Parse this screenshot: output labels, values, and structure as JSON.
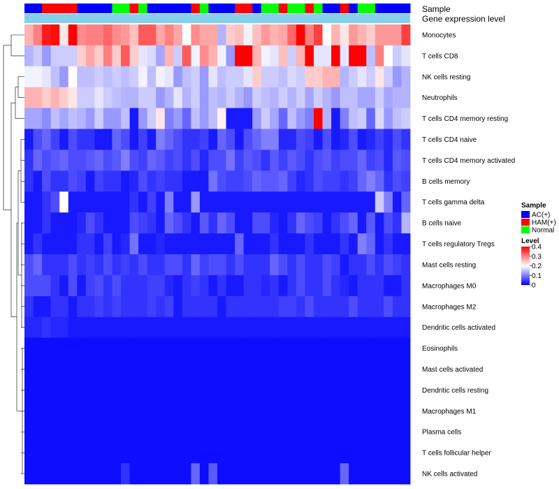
{
  "chart_data": {
    "type": "heatmap",
    "annotation_labels": {
      "sample": "Sample",
      "expression": "Gene expression level"
    },
    "legend": {
      "sample_title": "Sample",
      "sample_entries": [
        {
          "label": "AC(+)",
          "color": "#0000ff"
        },
        {
          "label": "HAM(+)",
          "color": "#ff0000"
        },
        {
          "label": "Normal",
          "color": "#00ff00"
        }
      ],
      "level_title": "Level",
      "level_ticks": [
        "0.4",
        "0.3",
        "0.2",
        "0.1",
        "0"
      ],
      "level_range": [
        0,
        0.4
      ],
      "colors": {
        "low": "#0000ff",
        "mid": "#ffffff",
        "high": "#ff0000"
      }
    },
    "expression_bar_color": "#87ceeb",
    "sample_groups": [
      "A",
      "A",
      "H",
      "H",
      "H",
      "H",
      "A",
      "A",
      "A",
      "A",
      "N",
      "N",
      "H",
      "N",
      "A",
      "A",
      "A",
      "A",
      "A",
      "H",
      "N",
      "A",
      "A",
      "A",
      "H",
      "H",
      "A",
      "N",
      "N",
      "H",
      "N",
      "N",
      "H",
      "N",
      "A",
      "A",
      "H",
      "A",
      "N",
      "N",
      "A",
      "A",
      "A",
      "A"
    ],
    "rows": [
      "Monocytes",
      "T cells CD8",
      "NK cells resting",
      "Neutrophils",
      "T cells CD4 memory resting",
      "T cells CD4 naive",
      "T cells CD4 memory activated",
      "B cells memory",
      "T cells gamma delta",
      "B cells naive",
      "T cells regulatory  Tregs",
      "Mast cells resting",
      "Macrophages M0",
      "Macrophages M2",
      "Dendritic cells activated",
      "Eosinophils",
      "Mast cells activated",
      "Dendritic cells resting",
      "Macrophages M1",
      "Plasma cells",
      "T cells follicular helper",
      "NK cells activated"
    ],
    "values": [
      [
        0.26,
        0.3,
        0.38,
        0.39,
        0.22,
        0.41,
        0.29,
        0.3,
        0.3,
        0.32,
        0.29,
        0.28,
        0.25,
        0.33,
        0.33,
        0.27,
        0.3,
        0.27,
        0.2,
        0.29,
        0.27,
        0.27,
        0.14,
        0.24,
        0.25,
        0.19,
        0.25,
        0.28,
        0.26,
        0.27,
        0.32,
        0.4,
        0.3,
        0.35,
        0.2,
        0.26,
        0.22,
        0.28,
        0.26,
        0.24,
        0.28,
        0.28,
        0.28,
        0.35
      ],
      [
        0.14,
        0.16,
        0.12,
        0.16,
        0.16,
        0.16,
        0.24,
        0.27,
        0.24,
        0.3,
        0.24,
        0.33,
        0.24,
        0.18,
        0.17,
        0.13,
        0.26,
        0.16,
        0.33,
        0.19,
        0.29,
        0.26,
        0.19,
        0.12,
        0.42,
        0.42,
        0.26,
        0.19,
        0.18,
        0.25,
        0.16,
        0.26,
        0.4,
        0.18,
        0.18,
        0.4,
        0.18,
        0.4,
        0.41,
        0.15,
        0.3,
        0.2,
        0.16,
        0.18
      ],
      [
        0.19,
        0.19,
        0.18,
        0.15,
        0.12,
        0.2,
        0.15,
        0.15,
        0.16,
        0.15,
        0.16,
        0.15,
        0.16,
        0.19,
        0.15,
        0.19,
        0.18,
        0.12,
        0.15,
        0.16,
        0.12,
        0.18,
        0.15,
        0.16,
        0.16,
        0.18,
        0.24,
        0.16,
        0.16,
        0.15,
        0.17,
        0.16,
        0.24,
        0.24,
        0.26,
        0.26,
        0.14,
        0.16,
        0.18,
        0.16,
        0.22,
        0.16,
        0.12,
        0.14
      ],
      [
        0.26,
        0.26,
        0.24,
        0.26,
        0.24,
        0.22,
        0.16,
        0.16,
        0.18,
        0.16,
        0.15,
        0.14,
        0.14,
        0.16,
        0.16,
        0.12,
        0.14,
        0.18,
        0.14,
        0.16,
        0.12,
        0.15,
        0.14,
        0.16,
        0.14,
        0.12,
        0.16,
        0.15,
        0.14,
        0.16,
        0.14,
        0.16,
        0.13,
        0.16,
        0.14,
        0.12,
        0.15,
        0.15,
        0.13,
        0.13,
        0.16,
        0.13,
        0.14,
        0.14
      ],
      [
        0.13,
        0.13,
        0.11,
        0.15,
        0.13,
        0.15,
        0.14,
        0.12,
        0.16,
        0.12,
        0.12,
        0.15,
        0.02,
        0.12,
        0.16,
        0.22,
        0.1,
        0.12,
        0.08,
        0.15,
        0.12,
        0.15,
        0.21,
        0.02,
        0.02,
        0.02,
        0.12,
        0.16,
        0.13,
        0.08,
        0.15,
        0.12,
        0.1,
        0.4,
        0.14,
        0.02,
        0.1,
        0.15,
        0.16,
        0.08,
        0.17,
        0.12,
        0.15,
        0.16
      ],
      [
        0.02,
        0.06,
        0.08,
        0.05,
        0.02,
        0.06,
        0.04,
        0.04,
        0.02,
        0.02,
        0.08,
        0.06,
        0.02,
        0.05,
        0.02,
        0.1,
        0.08,
        0.06,
        0.04,
        0.04,
        0.05,
        0.02,
        0.08,
        0.06,
        0.02,
        0.06,
        0.08,
        0.1,
        0.1,
        0.03,
        0.03,
        0.06,
        0.05,
        0.02,
        0.06,
        0.02,
        0.03,
        0.06,
        0.02,
        0.03,
        0.05,
        0.03,
        0.06,
        0.04
      ],
      [
        0.04,
        0.08,
        0.06,
        0.07,
        0.08,
        0.06,
        0.06,
        0.07,
        0.08,
        0.06,
        0.07,
        0.1,
        0.06,
        0.05,
        0.08,
        0.07,
        0.05,
        0.06,
        0.04,
        0.06,
        0.03,
        0.06,
        0.06,
        0.09,
        0.05,
        0.07,
        0.06,
        0.04,
        0.07,
        0.05,
        0.07,
        0.06,
        0.04,
        0.06,
        0.07,
        0.05,
        0.06,
        0.06,
        0.08,
        0.05,
        0.06,
        0.03,
        0.07,
        0.06
      ],
      [
        0.04,
        0.02,
        0.06,
        0.04,
        0.04,
        0.06,
        0.05,
        0.02,
        0.05,
        0.04,
        0.04,
        0.02,
        0.03,
        0.06,
        0.04,
        0.05,
        0.04,
        0.04,
        0.02,
        0.02,
        0.02,
        0.09,
        0.06,
        0.05,
        0.05,
        0.06,
        0.08,
        0.07,
        0.07,
        0.08,
        0.05,
        0.03,
        0.04,
        0.06,
        0.05,
        0.05,
        0.04,
        0.05,
        0.08,
        0.1,
        0.08,
        0.04,
        0.06,
        0.05
      ],
      [
        0.02,
        0.02,
        0.04,
        0.06,
        0.2,
        0.02,
        0.02,
        0.02,
        0.02,
        0.02,
        0.02,
        0.02,
        0.04,
        0.02,
        0.05,
        0.02,
        0.1,
        0.02,
        0.02,
        0.12,
        0.02,
        0.02,
        0.02,
        0.02,
        0.02,
        0.02,
        0.02,
        0.02,
        0.02,
        0.02,
        0.02,
        0.02,
        0.02,
        0.02,
        0.02,
        0.02,
        0.02,
        0.02,
        0.02,
        0.02,
        0.16,
        0.1,
        0.02,
        0.08
      ],
      [
        0.02,
        0.02,
        0.04,
        0.02,
        0.02,
        0.02,
        0.03,
        0.06,
        0.04,
        0.02,
        0.02,
        0.02,
        0.06,
        0.05,
        0.04,
        0.02,
        0.08,
        0.06,
        0.04,
        0.02,
        0.07,
        0.04,
        0.08,
        0.06,
        0.02,
        0.02,
        0.06,
        0.06,
        0.03,
        0.02,
        0.04,
        0.08,
        0.06,
        0.05,
        0.02,
        0.04,
        0.06,
        0.08,
        0.02,
        0.07,
        0.02,
        0.06,
        0.04,
        0.14
      ],
      [
        0.02,
        0.04,
        0.02,
        0.02,
        0.02,
        0.02,
        0.04,
        0.04,
        0.02,
        0.05,
        0.02,
        0.03,
        0.09,
        0.02,
        0.02,
        0.03,
        0.02,
        0.02,
        0.02,
        0.02,
        0.02,
        0.02,
        0.02,
        0.02,
        0.08,
        0.02,
        0.02,
        0.02,
        0.04,
        0.02,
        0.02,
        0.02,
        0.04,
        0.02,
        0.02,
        0.02,
        0.04,
        0.02,
        0.1,
        0.08,
        0.02,
        0.04,
        0.02,
        0.02
      ],
      [
        0.06,
        0.08,
        0.04,
        0.04,
        0.04,
        0.06,
        0.04,
        0.05,
        0.04,
        0.06,
        0.04,
        0.05,
        0.04,
        0.06,
        0.04,
        0.04,
        0.06,
        0.06,
        0.04,
        0.08,
        0.05,
        0.06,
        0.06,
        0.04,
        0.06,
        0.04,
        0.04,
        0.04,
        0.08,
        0.06,
        0.04,
        0.06,
        0.04,
        0.04,
        0.06,
        0.05,
        0.02,
        0.04,
        0.04,
        0.06,
        0.04,
        0.06,
        0.05,
        0.04
      ],
      [
        0.06,
        0.06,
        0.06,
        0.04,
        0.02,
        0.06,
        0.02,
        0.05,
        0.06,
        0.04,
        0.06,
        0.04,
        0.04,
        0.04,
        0.05,
        0.05,
        0.03,
        0.02,
        0.04,
        0.05,
        0.04,
        0.02,
        0.04,
        0.02,
        0.02,
        0.04,
        0.04,
        0.03,
        0.04,
        0.02,
        0.04,
        0.06,
        0.04,
        0.04,
        0.06,
        0.04,
        0.03,
        0.02,
        0.04,
        0.04,
        0.04,
        0.02,
        0.02,
        0.04
      ],
      [
        0.04,
        0.02,
        0.02,
        0.04,
        0.04,
        0.02,
        0.04,
        0.04,
        0.05,
        0.04,
        0.05,
        0.04,
        0.04,
        0.04,
        0.05,
        0.04,
        0.05,
        0.02,
        0.04,
        0.04,
        0.04,
        0.04,
        0.02,
        0.04,
        0.04,
        0.04,
        0.04,
        0.04,
        0.04,
        0.05,
        0.05,
        0.04,
        0.06,
        0.04,
        0.04,
        0.04,
        0.04,
        0.06,
        0.04,
        0.04,
        0.04,
        0.06,
        0.04,
        0.04
      ],
      [
        0.03,
        0.03,
        0.04,
        0.03,
        0.03,
        0.02,
        0.02,
        0.02,
        0.02,
        0.02,
        0.02,
        0.02,
        0.02,
        0.02,
        0.02,
        0.02,
        0.02,
        0.02,
        0.02,
        0.02,
        0.02,
        0.02,
        0.02,
        0.02,
        0.02,
        0.02,
        0.02,
        0.02,
        0.02,
        0.02,
        0.02,
        0.02,
        0.02,
        0.02,
        0.02,
        0.02,
        0.02,
        0.02,
        0.02,
        0.02,
        0.02,
        0.02,
        0.02,
        0.02
      ],
      [
        0.01,
        0.01,
        0.01,
        0.01,
        0.01,
        0.01,
        0.01,
        0.01,
        0.01,
        0.01,
        0.01,
        0.01,
        0.01,
        0.01,
        0.01,
        0.01,
        0.01,
        0.01,
        0.01,
        0.01,
        0.01,
        0.01,
        0.01,
        0.01,
        0.01,
        0.01,
        0.01,
        0.01,
        0.01,
        0.01,
        0.01,
        0.01,
        0.01,
        0.01,
        0.01,
        0.01,
        0.01,
        0.01,
        0.01,
        0.01,
        0.01,
        0.01,
        0.01,
        0.01
      ],
      [
        0.01,
        0.01,
        0.01,
        0.01,
        0.01,
        0.01,
        0.01,
        0.01,
        0.01,
        0.01,
        0.01,
        0.01,
        0.01,
        0.01,
        0.01,
        0.01,
        0.01,
        0.01,
        0.01,
        0.01,
        0.01,
        0.01,
        0.01,
        0.01,
        0.01,
        0.01,
        0.01,
        0.01,
        0.01,
        0.01,
        0.01,
        0.01,
        0.01,
        0.01,
        0.01,
        0.01,
        0.01,
        0.01,
        0.01,
        0.01,
        0.01,
        0.01,
        0.01,
        0.01
      ],
      [
        0.01,
        0.01,
        0.01,
        0.01,
        0.01,
        0.01,
        0.01,
        0.01,
        0.01,
        0.01,
        0.01,
        0.01,
        0.01,
        0.01,
        0.01,
        0.01,
        0.01,
        0.01,
        0.01,
        0.01,
        0.01,
        0.01,
        0.01,
        0.01,
        0.01,
        0.01,
        0.01,
        0.01,
        0.01,
        0.01,
        0.01,
        0.01,
        0.01,
        0.01,
        0.01,
        0.01,
        0.01,
        0.01,
        0.01,
        0.01,
        0.01,
        0.01,
        0.01,
        0.01
      ],
      [
        0.01,
        0.01,
        0.01,
        0.01,
        0.01,
        0.01,
        0.01,
        0.01,
        0.01,
        0.01,
        0.01,
        0.01,
        0.01,
        0.01,
        0.01,
        0.01,
        0.01,
        0.01,
        0.01,
        0.01,
        0.01,
        0.01,
        0.01,
        0.01,
        0.01,
        0.01,
        0.01,
        0.01,
        0.01,
        0.01,
        0.01,
        0.01,
        0.01,
        0.01,
        0.01,
        0.01,
        0.01,
        0.01,
        0.01,
        0.01,
        0.01,
        0.01,
        0.01,
        0.01
      ],
      [
        0.01,
        0.01,
        0.01,
        0.01,
        0.01,
        0.01,
        0.01,
        0.01,
        0.01,
        0.01,
        0.01,
        0.01,
        0.01,
        0.01,
        0.01,
        0.01,
        0.01,
        0.01,
        0.01,
        0.01,
        0.01,
        0.01,
        0.01,
        0.01,
        0.01,
        0.01,
        0.01,
        0.01,
        0.01,
        0.01,
        0.01,
        0.01,
        0.01,
        0.01,
        0.01,
        0.01,
        0.01,
        0.01,
        0.01,
        0.01,
        0.01,
        0.01,
        0.01,
        0.01
      ],
      [
        0.01,
        0.01,
        0.01,
        0.01,
        0.01,
        0.01,
        0.01,
        0.01,
        0.01,
        0.01,
        0.01,
        0.01,
        0.01,
        0.01,
        0.01,
        0.01,
        0.01,
        0.01,
        0.01,
        0.01,
        0.01,
        0.01,
        0.01,
        0.01,
        0.01,
        0.01,
        0.01,
        0.01,
        0.01,
        0.01,
        0.01,
        0.01,
        0.01,
        0.01,
        0.01,
        0.01,
        0.01,
        0.01,
        0.01,
        0.01,
        0.01,
        0.01,
        0.01,
        0.01
      ],
      [
        0.01,
        0.01,
        0.01,
        0.01,
        0.01,
        0.01,
        0.01,
        0.01,
        0.01,
        0.01,
        0.01,
        0.04,
        0.01,
        0.01,
        0.01,
        0.01,
        0.01,
        0.01,
        0.01,
        0.08,
        0.01,
        0.07,
        0.01,
        0.01,
        0.01,
        0.01,
        0.01,
        0.01,
        0.01,
        0.01,
        0.01,
        0.01,
        0.01,
        0.01,
        0.01,
        0.01,
        0.08,
        0.01,
        0.01,
        0.01,
        0.01,
        0.01,
        0.01,
        0.01
      ]
    ]
  }
}
